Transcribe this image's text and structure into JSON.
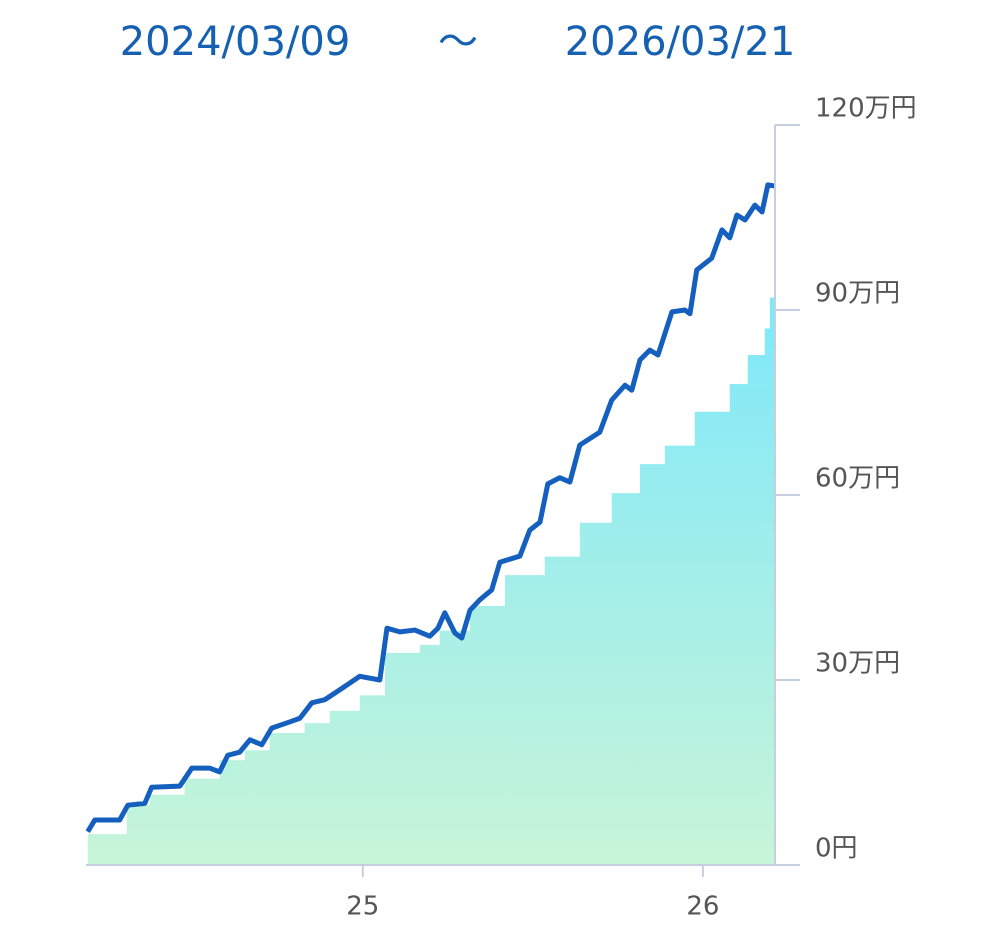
{
  "chart_data": {
    "type": "line",
    "title": "2024/03/09",
    "separator": "～",
    "subtitle": "2026/03/21",
    "xlim": [
      2024.186,
      2026.215
    ],
    "xticks": [
      {
        "value": 2025,
        "label": "25"
      },
      {
        "value": 2026,
        "label": "26"
      }
    ],
    "ylim": [
      0,
      120
    ],
    "yticks": [
      {
        "value": 0,
        "label": "0円"
      },
      {
        "value": 30,
        "label": "30万円"
      },
      {
        "value": 60,
        "label": "60万円"
      },
      {
        "value": 90,
        "label": "90万円"
      },
      {
        "value": 120,
        "label": "120万円"
      }
    ],
    "series": [
      {
        "style": "step-area",
        "color": "#7ee8fa",
        "x": [
          2024.191,
          2024.306,
          2024.374,
          2024.476,
          2024.579,
          2024.653,
          2024.726,
          2024.829,
          2024.903,
          2024.991,
          2025.065,
          2025.168,
          2025.226,
          2025.315,
          2025.418,
          2025.535,
          2025.638,
          2025.732,
          2025.815,
          2025.888,
          2025.976,
          2026.079,
          2026.132,
          2026.182,
          2026.197
        ],
        "values": [
          5,
          9.7,
          11.4,
          14,
          17,
          18.6,
          21.4,
          23,
          25,
          27.5,
          34.4,
          35.7,
          38,
          42,
          47,
          50,
          55.5,
          60.3,
          65,
          68,
          73.5,
          78,
          82.7,
          87,
          92
        ]
      },
      {
        "style": "line",
        "color": "#1560bf",
        "x": [
          2024.191,
          2024.212,
          2024.285,
          2024.309,
          2024.359,
          2024.379,
          2024.462,
          2024.497,
          2024.55,
          2024.579,
          2024.603,
          2024.638,
          2024.668,
          2024.703,
          2024.732,
          2024.785,
          2024.815,
          2024.85,
          2024.888,
          2024.932,
          2024.991,
          2025.05,
          2025.071,
          2025.109,
          2025.153,
          2025.197,
          2025.221,
          2025.241,
          2025.271,
          2025.291,
          2025.315,
          2025.344,
          2025.379,
          2025.403,
          2025.462,
          2025.491,
          2025.521,
          2025.544,
          2025.579,
          2025.609,
          2025.638,
          2025.697,
          2025.732,
          2025.771,
          2025.791,
          2025.815,
          2025.844,
          2025.868,
          2025.909,
          2025.947,
          2025.962,
          2025.982,
          2026.026,
          2026.056,
          2026.079,
          2026.1,
          2026.124,
          2026.153,
          2026.174,
          2026.191,
          2026.212
        ],
        "values": [
          5.4,
          7.3,
          7.3,
          9.7,
          10,
          12.6,
          12.8,
          15.7,
          15.7,
          15.1,
          17.8,
          18.3,
          20.3,
          19.5,
          22.2,
          23.2,
          23.8,
          26.3,
          26.8,
          28.4,
          30.6,
          30,
          38.4,
          37.8,
          38.1,
          37.1,
          38.4,
          40.9,
          37.6,
          36.8,
          41.3,
          43,
          44.6,
          49.1,
          50.1,
          54.3,
          55.6,
          61.8,
          62.8,
          62.1,
          68.1,
          70.2,
          75.4,
          77.8,
          77,
          81.9,
          83.5,
          82.7,
          89.7,
          90,
          89.4,
          96.5,
          98.4,
          103,
          101.7,
          105.4,
          104.6,
          107,
          105.9,
          110.3,
          110.1
        ]
      }
    ]
  }
}
